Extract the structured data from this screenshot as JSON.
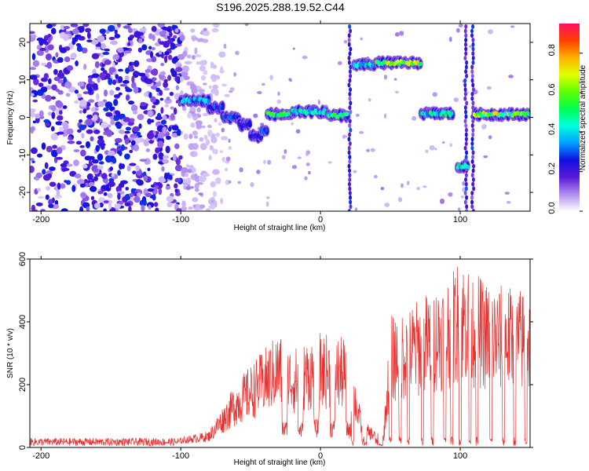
{
  "title": "S196.2025.288.19.52.C44",
  "colors": {
    "snr_line": "#e8302f",
    "frame": "#000000",
    "background": "#ffffff"
  },
  "chart_data": [
    {
      "type": "heatmap",
      "name": "spectrogram",
      "xlabel": "Height of straight line (km)",
      "ylabel": "Frequency (Hz)",
      "xlim": [
        -208,
        150
      ],
      "ylim": [
        -25,
        25
      ],
      "xticks": [
        -200,
        -100,
        0,
        100
      ],
      "yticks": [
        -20,
        -10,
        0,
        10,
        20
      ],
      "colorbar": {
        "label": "Normalized spectral amplitude",
        "range": [
          0.0,
          0.95
        ],
        "ticks": [
          "0.0",
          "0.2",
          "0.4",
          "0.6",
          "0.8"
        ],
        "tick_values": [
          0.0,
          0.2,
          0.4,
          0.6,
          0.8
        ],
        "stops": [
          "#ffffff",
          "#b08cf0",
          "#5a18d8",
          "#1010e0",
          "#00a0ff",
          "#00ffe0",
          "#00ff50",
          "#60ff00",
          "#e0ff00",
          "#ffb000",
          "#ff4000",
          "#ff1060"
        ]
      },
      "noise_region_x": [
        -208,
        -100
      ],
      "ridge_segments": [
        {
          "x": [
            -100,
            -80
          ],
          "freq": 4.5,
          "amplitude": 0.45
        },
        {
          "x": [
            -80,
            -70
          ],
          "freq": 2.5,
          "amplitude": 0.35
        },
        {
          "x": [
            -70,
            -58
          ],
          "freq": 0,
          "amplitude": 0.35
        },
        {
          "x": [
            -58,
            -50
          ],
          "freq": -2,
          "amplitude": 0.3
        },
        {
          "x": [
            -50,
            -42
          ],
          "freq": -5,
          "amplitude": 0.3
        },
        {
          "x": [
            -42,
            -38
          ],
          "freq": -3.5,
          "amplitude": 0.35
        },
        {
          "x": [
            -38,
            -20
          ],
          "freq": 0.8,
          "amplitude": 0.6
        },
        {
          "x": [
            -20,
            5
          ],
          "freq": 1.5,
          "amplitude": 0.55
        },
        {
          "x": [
            5,
            20
          ],
          "freq": 0.5,
          "amplitude": 0.65
        },
        {
          "x": [
            24,
            40
          ],
          "freq": 14,
          "amplitude": 0.5
        },
        {
          "x": [
            40,
            72
          ],
          "freq": 14.5,
          "amplitude": 0.75
        },
        {
          "x": [
            72,
            95
          ],
          "freq": 1,
          "amplitude": 0.55
        },
        {
          "x": [
            98,
            106
          ],
          "freq": -13,
          "amplitude": 0.6
        },
        {
          "x": [
            110,
            150
          ],
          "freq": 0.8,
          "amplitude": 0.75
        }
      ],
      "vertical_streaks_x": [
        21,
        104,
        109
      ]
    },
    {
      "type": "line",
      "name": "snr",
      "xlabel": "Height of straight line (km)",
      "ylabel": "SNR (10 * v/v)",
      "xlim": [
        -208,
        150
      ],
      "ylim": [
        0,
        600
      ],
      "xticks": [
        -200,
        -100,
        0,
        100
      ],
      "yticks": [
        0,
        200,
        400,
        600
      ],
      "series": [
        {
          "name": "SNR",
          "envelope_x": [
            -208,
            -100,
            -80,
            -60,
            -50,
            -30,
            -20,
            0,
            20,
            30,
            45,
            50,
            70,
            90,
            100,
            120,
            150
          ],
          "envelope_y": [
            20,
            30,
            50,
            200,
            250,
            350,
            300,
            350,
            330,
            80,
            40,
            400,
            450,
            520,
            580,
            500,
            480
          ],
          "drop_x": [
            23,
            31,
            40,
            50,
            57,
            63,
            73,
            80,
            89,
            94,
            100,
            107,
            112,
            122,
            131,
            139,
            147
          ]
        }
      ]
    }
  ]
}
